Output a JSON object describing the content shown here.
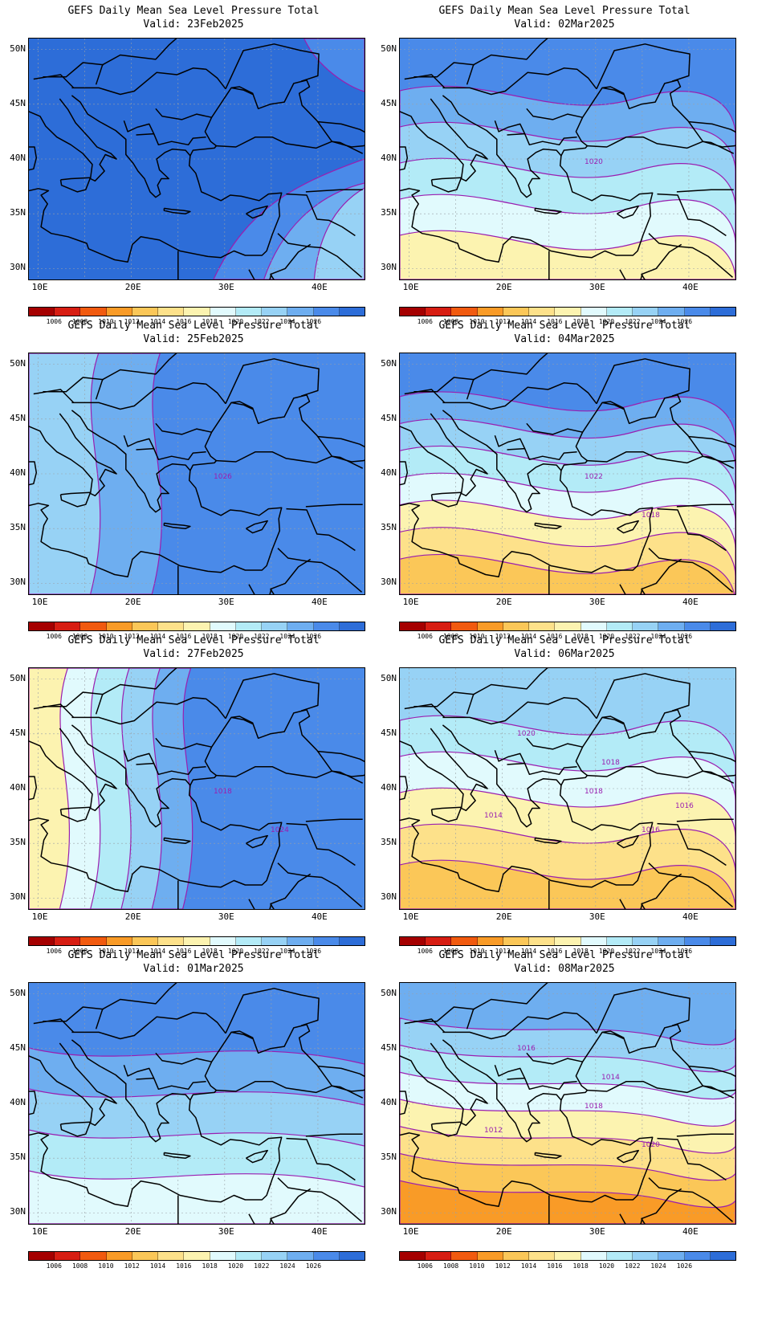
{
  "figure": {
    "panels": [
      {
        "title": "GEFS Daily Mean Sea Level Pressure Total",
        "valid": "Valid: 23Feb2025",
        "field": {
          "base": 0,
          "gradient_dir": "none",
          "left_bias": 0,
          "sw_bias": 1,
          "sw_levels": [
            11,
            10,
            9
          ],
          "ne_bias": 0
        },
        "contour_labels": []
      },
      {
        "title": "GEFS Daily Mean Sea Level Pressure Total",
        "valid": "Valid: 02Mar2025",
        "field": {
          "bands": [
            6,
            7,
            8,
            9,
            10,
            11
          ],
          "style": "north_high_sw_low"
        },
        "contour_labels": [
          "1020"
        ]
      },
      {
        "title": "GEFS Daily Mean Sea Level Pressure Total",
        "valid": "Valid: 25Feb2025",
        "field": {
          "bands": [
            9,
            10,
            11
          ],
          "style": "west_low_east_high"
        },
        "contour_labels": [
          "1026"
        ]
      },
      {
        "title": "GEFS Daily Mean Sea Level Pressure Total",
        "valid": "Valid: 04Mar2025",
        "field": {
          "bands": [
            4,
            5,
            6,
            7,
            8,
            9,
            10,
            11
          ],
          "style": "north_high_sw_low"
        },
        "contour_labels": [
          "1022",
          "1018"
        ]
      },
      {
        "title": "GEFS Daily Mean Sea Level Pressure Total",
        "valid": "Valid: 27Feb2025",
        "field": {
          "bands": [
            6,
            7,
            8,
            9,
            10,
            11
          ],
          "style": "west_low_east_high"
        },
        "contour_labels": [
          "1018",
          "1024"
        ]
      },
      {
        "title": "GEFS Daily Mean Sea Level Pressure Total",
        "valid": "Valid: 06Mar2025",
        "field": {
          "bands": [
            4,
            5,
            6,
            7,
            8,
            9
          ],
          "style": "north_high_sw_low"
        },
        "contour_labels": [
          "1018",
          "1016",
          "1020",
          "1018",
          "1014",
          "1016"
        ]
      },
      {
        "title": "GEFS Daily Mean Sea Level Pressure Total",
        "valid": "Valid: 01Mar2025",
        "field": {
          "bands": [
            7,
            8,
            9,
            10,
            11
          ],
          "style": "south_low_north_high"
        },
        "contour_labels": []
      },
      {
        "title": "GEFS Daily Mean Sea Level Pressure Total",
        "valid": "Valid: 08Mar2025",
        "field": {
          "bands": [
            3,
            4,
            5,
            6,
            7,
            8,
            9,
            10
          ],
          "style": "north_high_se_low"
        },
        "contour_labels": [
          "1018",
          "1020",
          "1016",
          "1014",
          "1012"
        ]
      }
    ],
    "lat_labels": [
      "50N",
      "45N",
      "40N",
      "35N",
      "30N"
    ],
    "lon_labels": [
      "10E",
      "20E",
      "30E",
      "40E"
    ],
    "colorbar": {
      "ticks": [
        "1006",
        "1008",
        "1010",
        "1012",
        "1014",
        "1016",
        "1018",
        "1020",
        "1022",
        "1024",
        "1026"
      ],
      "colors": [
        "#a50000",
        "#d71d12",
        "#f15a0f",
        "#f99b27",
        "#fbc758",
        "#fde18a",
        "#fcf3b0",
        "#e1fafd",
        "#b3ebf7",
        "#97d2f5",
        "#6eaef0",
        "#4a8ae9",
        "#2d6dd8"
      ]
    },
    "contour_color": "#9a1eb0"
  }
}
